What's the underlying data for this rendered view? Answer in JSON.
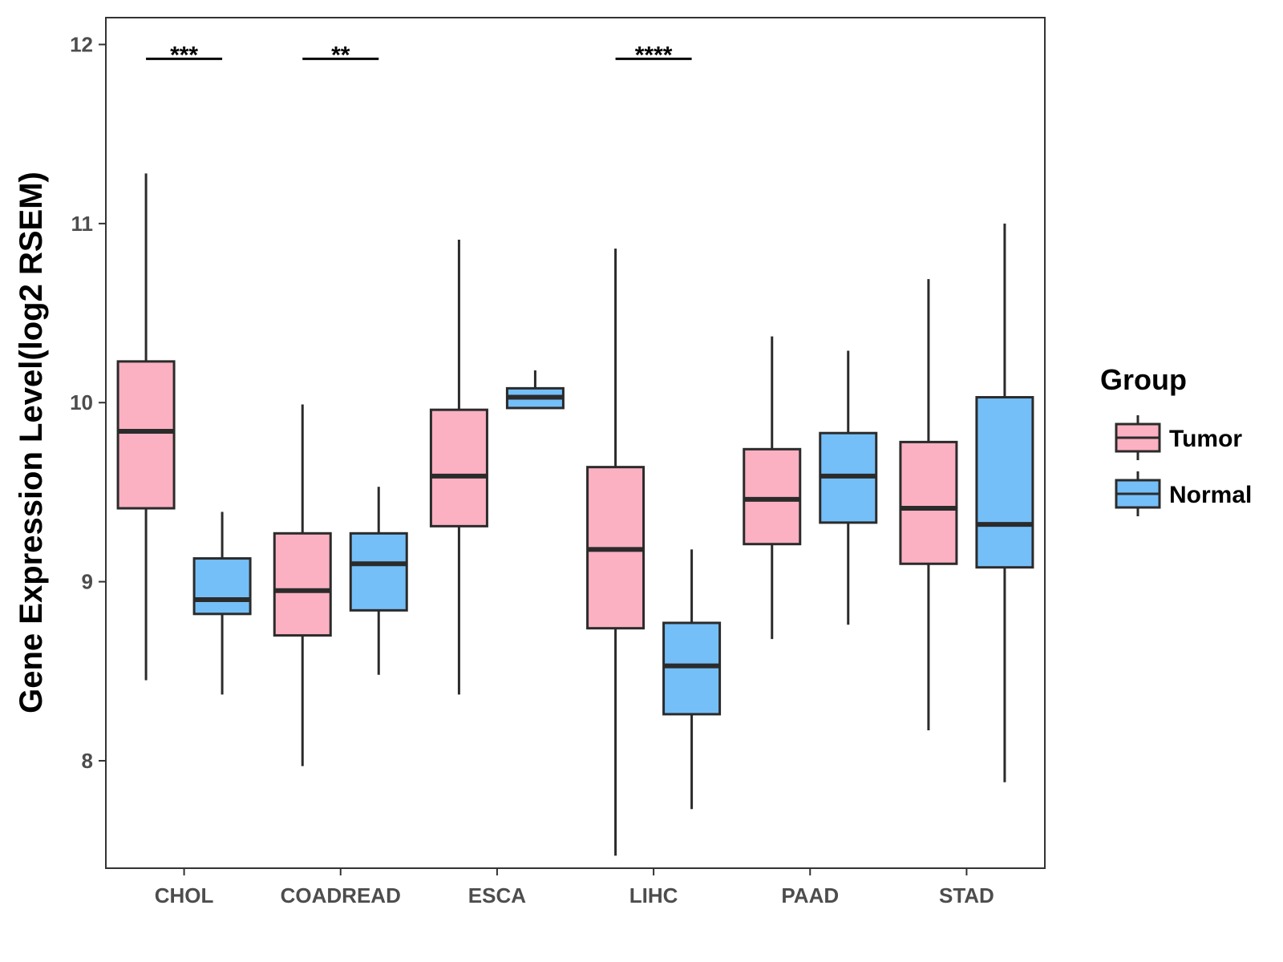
{
  "chart_data": {
    "type": "boxplot",
    "title": "",
    "xlabel": "",
    "ylabel": "Gene Expression Level(log2 RSEM)",
    "ylim": [
      7.4,
      12.15
    ],
    "yticks": [
      8,
      9,
      10,
      11,
      12
    ],
    "grid": false,
    "legend": {
      "title": "Group",
      "position": "right",
      "entries": [
        {
          "name": "Tumor",
          "color": "#fbb1c2"
        },
        {
          "name": "Normal",
          "color": "#75bff8"
        }
      ]
    },
    "categories": [
      "CHOL",
      "COADREAD",
      "ESCA",
      "LIHC",
      "PAAD",
      "STAD"
    ],
    "series": [
      {
        "name": "Tumor",
        "color": "#fbb1c2",
        "boxes": [
          {
            "min": 8.45,
            "q1": 9.41,
            "median": 9.84,
            "q3": 10.23,
            "max": 11.28
          },
          {
            "min": 7.97,
            "q1": 8.7,
            "median": 8.95,
            "q3": 9.27,
            "max": 9.99
          },
          {
            "min": 8.37,
            "q1": 9.31,
            "median": 9.59,
            "q3": 9.96,
            "max": 10.91
          },
          {
            "min": 7.47,
            "q1": 8.74,
            "median": 9.18,
            "q3": 9.64,
            "max": 10.86
          },
          {
            "min": 8.68,
            "q1": 9.21,
            "median": 9.46,
            "q3": 9.74,
            "max": 10.37
          },
          {
            "min": 8.17,
            "q1": 9.1,
            "median": 9.41,
            "q3": 9.78,
            "max": 10.69
          }
        ]
      },
      {
        "name": "Normal",
        "color": "#75bff8",
        "boxes": [
          {
            "min": 8.37,
            "q1": 8.82,
            "median": 8.9,
            "q3": 9.13,
            "max": 9.39
          },
          {
            "min": 8.48,
            "q1": 8.84,
            "median": 9.1,
            "q3": 9.27,
            "max": 9.53
          },
          {
            "min": 9.97,
            "q1": 9.97,
            "median": 10.03,
            "q3": 10.08,
            "max": 10.18
          },
          {
            "min": 7.73,
            "q1": 8.26,
            "median": 8.53,
            "q3": 8.77,
            "max": 9.18
          },
          {
            "min": 8.76,
            "q1": 9.33,
            "median": 9.59,
            "q3": 9.83,
            "max": 10.29
          },
          {
            "min": 7.88,
            "q1": 9.08,
            "median": 9.32,
            "q3": 10.03,
            "max": 11.0
          }
        ]
      }
    ],
    "annotations": [
      {
        "category": "CHOL",
        "label": "***",
        "y": 11.92
      },
      {
        "category": "COADREAD",
        "label": "**",
        "y": 11.92
      },
      {
        "category": "LIHC",
        "label": "****",
        "y": 11.92
      }
    ]
  }
}
